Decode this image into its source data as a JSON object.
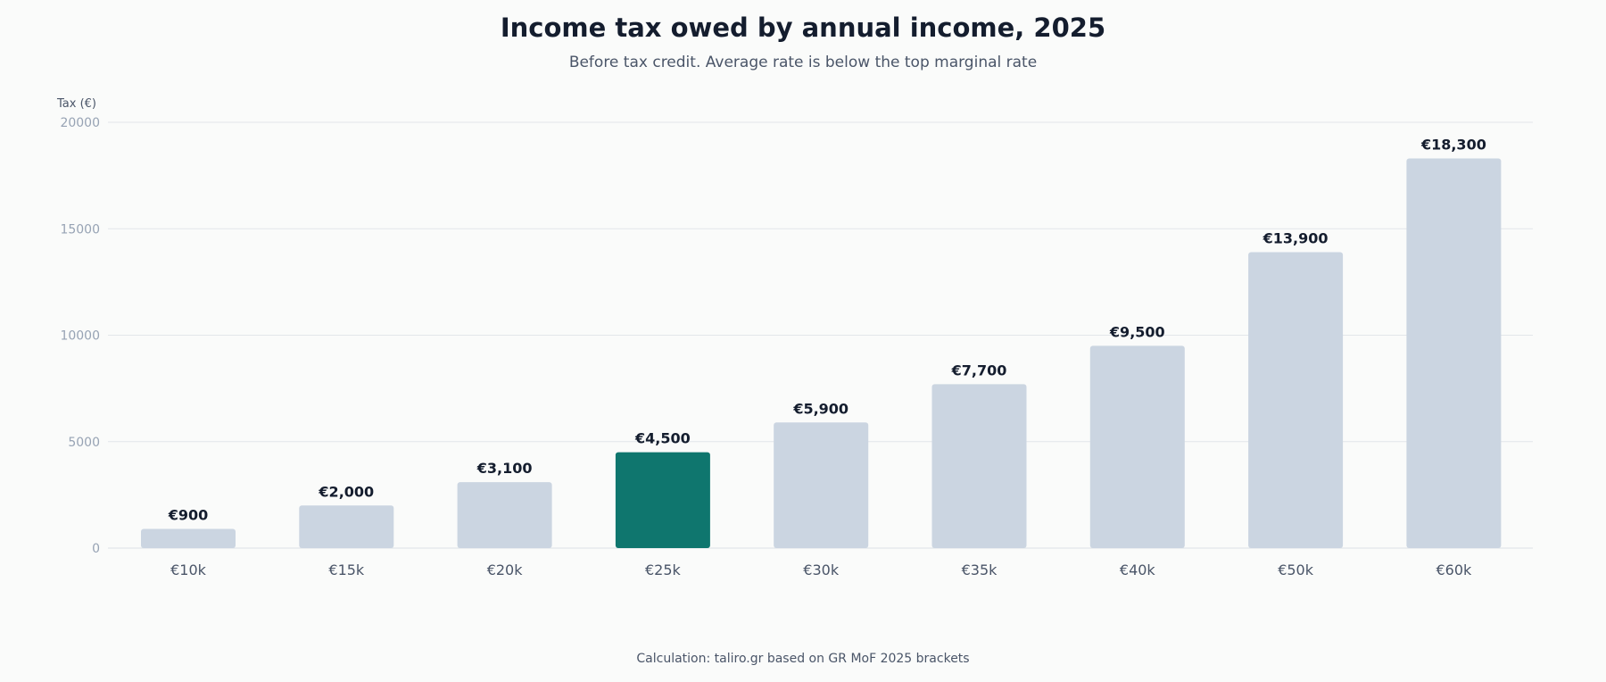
{
  "chart_data": {
    "type": "bar",
    "title": "Income tax owed by annual income, 2025",
    "subtitle": "Before tax credit. Average rate is below the top marginal rate",
    "ylabel": "Tax (€)",
    "xlabel": "",
    "categories": [
      "€10k",
      "€15k",
      "€20k",
      "€25k",
      "€30k",
      "€35k",
      "€40k",
      "€50k",
      "€60k"
    ],
    "values": [
      900,
      2000,
      3100,
      4500,
      5900,
      7700,
      9500,
      13900,
      18300
    ],
    "value_labels": [
      "€900",
      "€2,000",
      "€3,100",
      "€4,500",
      "€5,900",
      "€7,700",
      "€9,500",
      "€13,900",
      "€18,300"
    ],
    "ylim": [
      0,
      20000
    ],
    "yticks": [
      0,
      5000,
      10000,
      15000,
      20000
    ],
    "grid": true,
    "highlight_category": "€25k",
    "colors": {
      "bar": "#cbd5e1",
      "highlight": "#0f766e"
    }
  },
  "source": "Calculation: taliro.gr based on GR MoF 2025 brackets"
}
